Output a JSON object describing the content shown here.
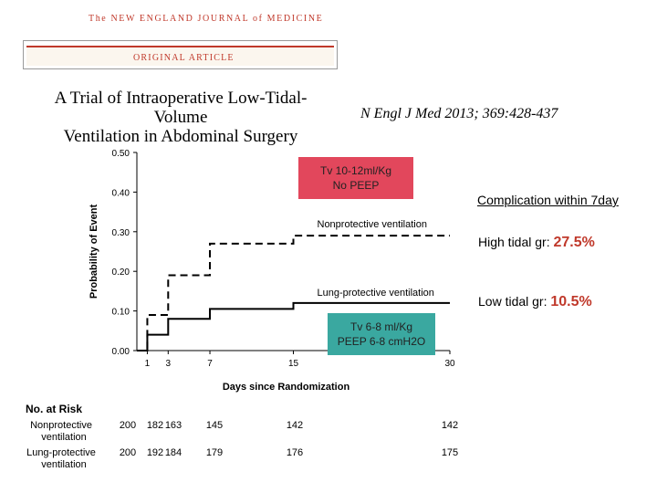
{
  "journal": "The NEW ENGLAND JOURNAL of MEDICINE",
  "banner": "ORIGINAL ARTICLE",
  "title_line1": "A Trial of Intraoperative Low-Tidal-Volume",
  "title_line2": "Ventilation in Abdominal Surgery",
  "citation": "N Engl J Med 2013; 369:428-437",
  "annotations": {
    "high_box": {
      "line1": "Tv 10-12ml/Kg",
      "line2": "No PEEP",
      "color": "#e2475c"
    },
    "low_box": {
      "line1": "Tv 6-8 ml/Kg",
      "line2": "PEEP 6-8 cmH2O",
      "color": "#3aa8a0"
    }
  },
  "complication": {
    "title": "Complication within 7day",
    "high_label": "High tidal gr: ",
    "high_value": "27.5%",
    "low_label": "Low tidal gr: ",
    "low_value": "10.5%"
  },
  "chart_data": {
    "type": "line",
    "style": "step",
    "ylabel": "Probability of Event",
    "xlabel": "Days since Randomization",
    "ylim": [
      0,
      0.5
    ],
    "xlim": [
      0,
      30
    ],
    "yticks": [
      "0.00",
      "0.10",
      "0.20",
      "0.30",
      "0.40",
      "0.50"
    ],
    "xticks": [
      "1",
      "3",
      "7",
      "15",
      "30"
    ],
    "series": [
      {
        "name": "Nonprotective ventilation",
        "dash": true,
        "x": [
          0,
          1,
          1,
          3,
          3,
          7,
          7,
          15,
          15,
          30
        ],
        "y": [
          0,
          0,
          0.09,
          0.09,
          0.19,
          0.19,
          0.27,
          0.27,
          0.29,
          0.29
        ]
      },
      {
        "name": "Lung-protective ventilation",
        "dash": false,
        "x": [
          0,
          1,
          1,
          3,
          3,
          7,
          7,
          15,
          15,
          30
        ],
        "y": [
          0,
          0,
          0.04,
          0.04,
          0.08,
          0.08,
          0.105,
          0.105,
          0.12,
          0.12
        ]
      }
    ],
    "risk_table": {
      "title": "No. at Risk",
      "rows": [
        {
          "label_line1": "Nonprotective",
          "label_line2": "ventilation",
          "values": [
            "200",
            "182",
            "163",
            "145",
            "142",
            "142"
          ]
        },
        {
          "label_line1": "Lung-protective",
          "label_line2": "ventilation",
          "values": [
            "200",
            "192",
            "184",
            "179",
            "176",
            "175"
          ]
        }
      ]
    }
  }
}
